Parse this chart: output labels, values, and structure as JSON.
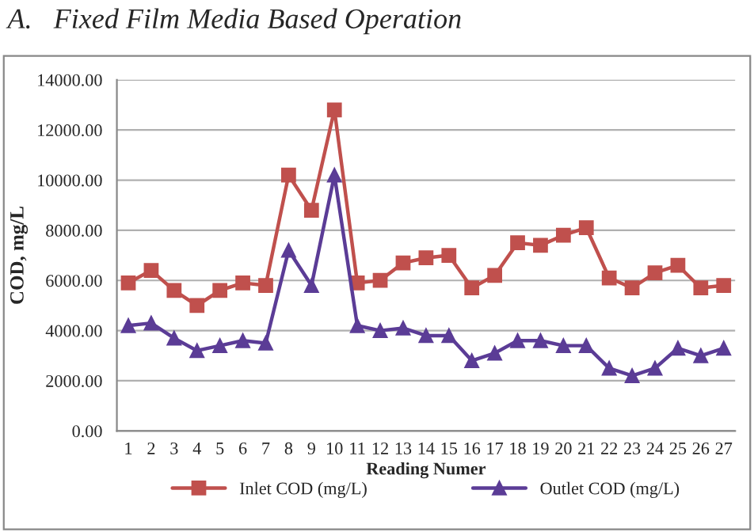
{
  "chart_data": {
    "type": "line",
    "title": "A.   Fixed Film Media Based Operation",
    "xlabel": "Reading Numer",
    "ylabel": "COD, mg/L",
    "categories": [
      "1",
      "2",
      "3",
      "4",
      "5",
      "6",
      "7",
      "8",
      "9",
      "10",
      "11",
      "12",
      "13",
      "14",
      "15",
      "16",
      "17",
      "18",
      "19",
      "20",
      "21",
      "22",
      "23",
      "24",
      "25",
      "26",
      "27"
    ],
    "series": [
      {
        "name": "Inlet COD (mg/L)",
        "color": "#c0504d",
        "marker": "square",
        "values": [
          5900,
          6400,
          5600,
          5000,
          5600,
          5900,
          5800,
          10200,
          8800,
          12800,
          5900,
          6000,
          6700,
          6900,
          7000,
          5700,
          6200,
          7500,
          7400,
          7800,
          8100,
          6100,
          5700,
          6300,
          6600,
          5700,
          5800
        ]
      },
      {
        "name": "Outlet COD (mg/L)",
        "color": "#5b3c96",
        "marker": "triangle",
        "values": [
          4200,
          4300,
          3700,
          3200,
          3400,
          3600,
          3500,
          7200,
          5800,
          10200,
          4200,
          4000,
          4100,
          3800,
          3800,
          2800,
          3100,
          3600,
          3600,
          3400,
          3400,
          2500,
          2200,
          2500,
          3300,
          3000,
          3300
        ]
      }
    ],
    "ylim": [
      0,
      14000
    ],
    "yticks": [
      {
        "value": 0,
        "label": "0.00"
      },
      {
        "value": 2000,
        "label": "2000.00"
      },
      {
        "value": 4000,
        "label": "4000.00"
      },
      {
        "value": 6000,
        "label": "6000.00"
      },
      {
        "value": 8000,
        "label": "8000.00"
      },
      {
        "value": 10000,
        "label": "10000.00"
      },
      {
        "value": 12000,
        "label": "12000.00"
      },
      {
        "value": 14000,
        "label": "14000.00"
      }
    ],
    "grid": "y",
    "legend": "bottom",
    "line_style": "solid"
  }
}
